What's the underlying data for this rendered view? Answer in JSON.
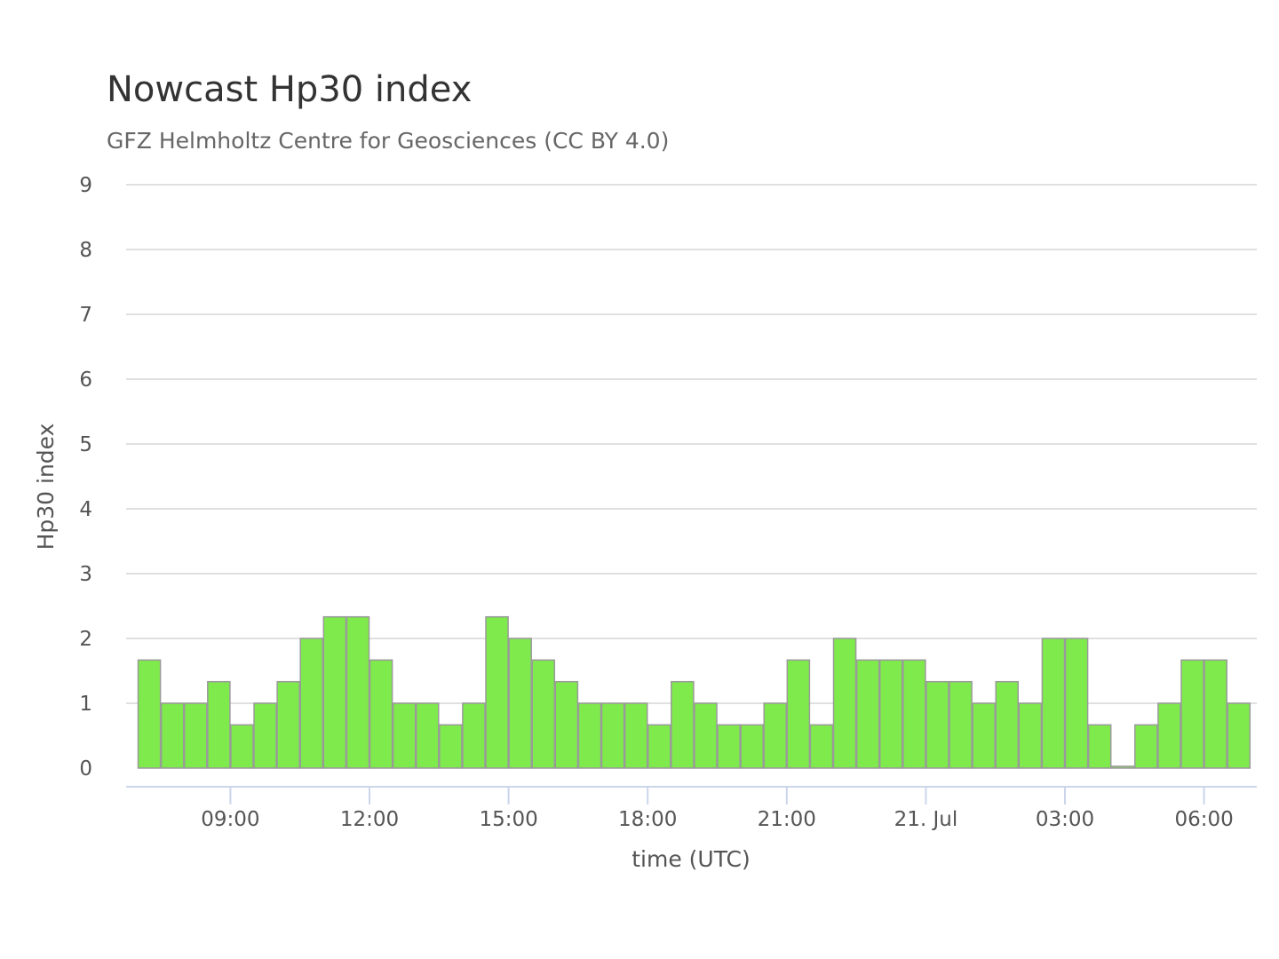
{
  "chart_data": {
    "type": "bar",
    "title": "Nowcast Hp30 index",
    "subtitle": "GFZ Helmholtz Centre for Geosciences (CC BY 4.0)",
    "xlabel": "time (UTC)",
    "ylabel": "Hp30 index",
    "ylim": [
      0,
      9
    ],
    "y_ticks": [
      "0",
      "1",
      "2",
      "3",
      "4",
      "5",
      "6",
      "7",
      "8",
      "9"
    ],
    "x_ticks": [
      "09:00",
      "12:00",
      "15:00",
      "18:00",
      "21:00",
      "21. Jul",
      "03:00",
      "06:00"
    ],
    "x_tick_hours": [
      9,
      12,
      15,
      18,
      21,
      24,
      27,
      30
    ],
    "x_start_hour": 7.0,
    "interval_hours": 0.5,
    "values": [
      1.667,
      1.0,
      1.0,
      1.333,
      0.667,
      1.0,
      1.333,
      2.0,
      2.333,
      2.333,
      1.667,
      1.0,
      1.0,
      0.667,
      1.0,
      2.333,
      2.0,
      1.667,
      1.333,
      1.0,
      1.0,
      1.0,
      0.667,
      1.333,
      1.0,
      0.667,
      0.667,
      1.0,
      1.667,
      0.667,
      2.0,
      1.667,
      1.667,
      1.667,
      1.333,
      1.333,
      1.0,
      1.333,
      1.0,
      2.0,
      2.0,
      0.667,
      0.0,
      0.667,
      1.0,
      1.667,
      1.667,
      1.0
    ],
    "bar_color": "#7fea4b",
    "bar_border_color": "#9a9a9a",
    "grid": true,
    "grid_color": "#e0e0e0",
    "axis_color": "#ccd6eb",
    "legend": "none"
  }
}
